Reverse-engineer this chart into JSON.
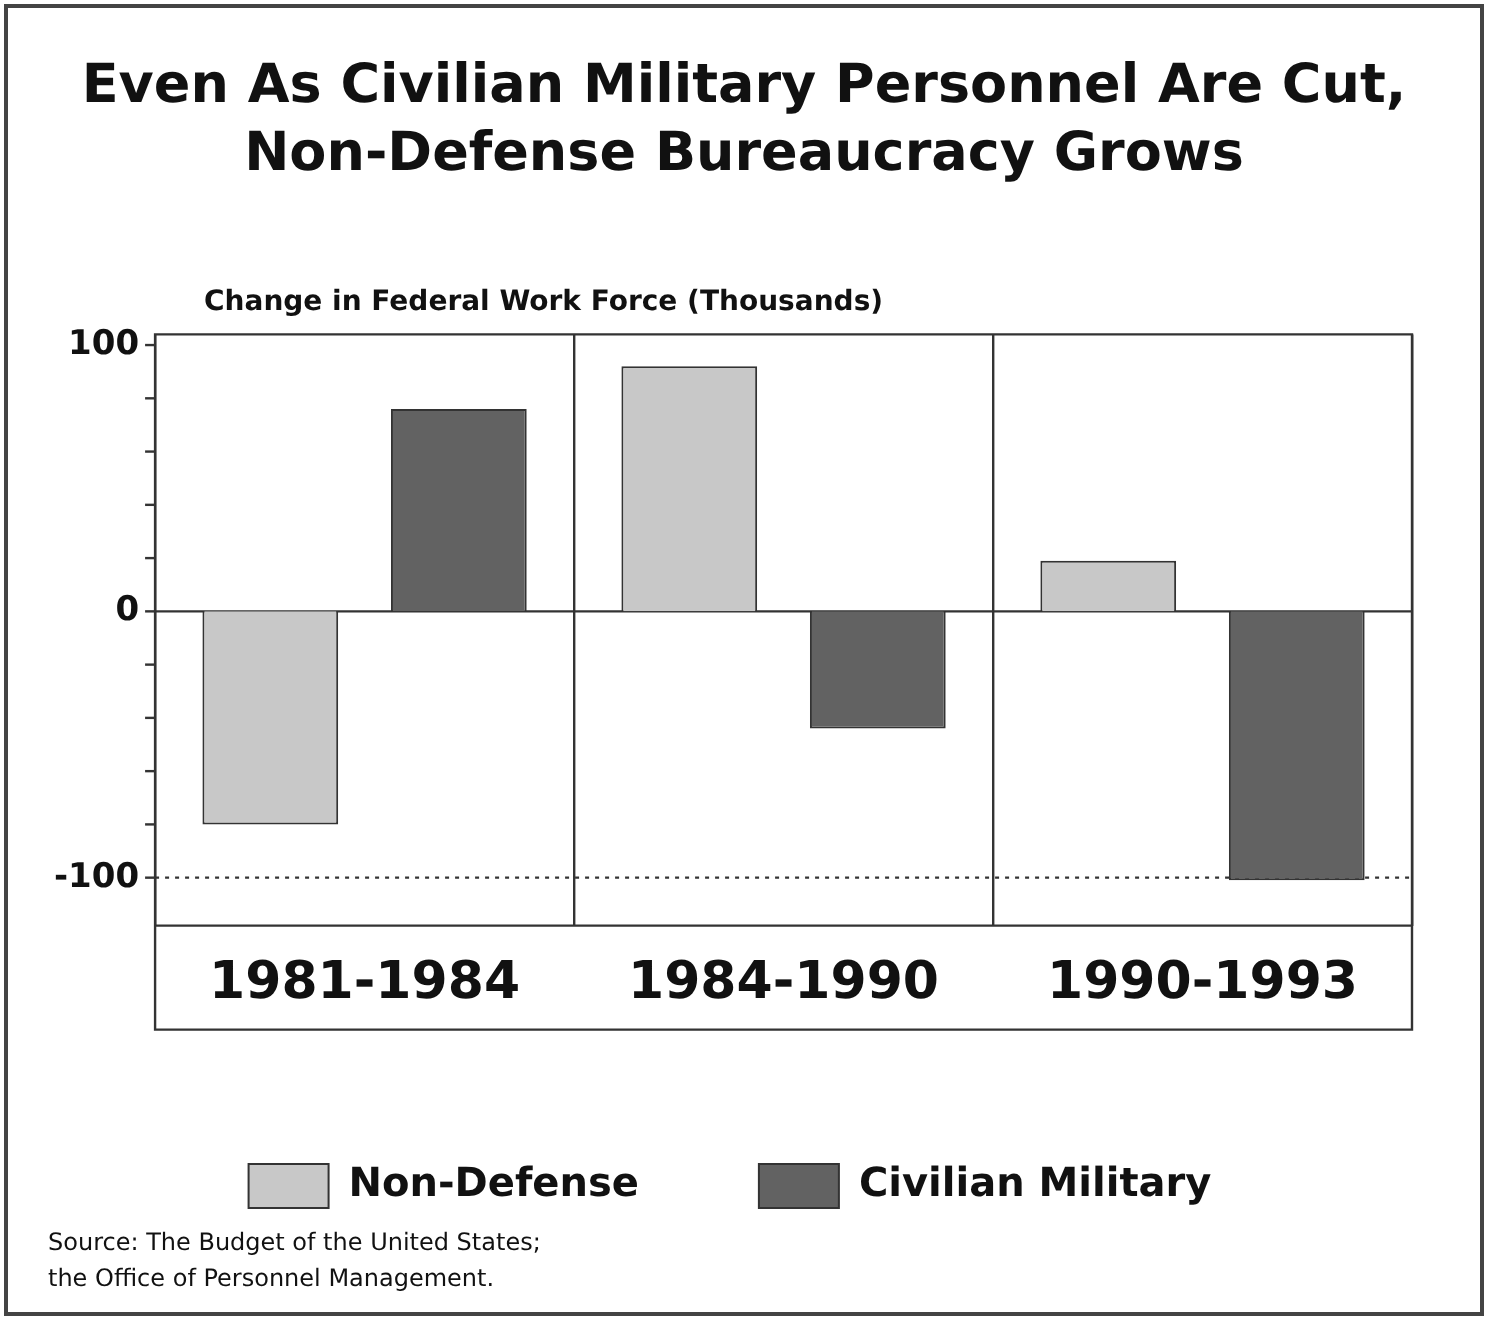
{
  "chart_data": {
    "type": "bar",
    "title": "Even As Civilian Military Personnel Are Cut,\nNon-Defense Bureaucracy Grows",
    "ylabel": "Change in Federal Work Force (Thousands)",
    "categories": [
      "1981-1984",
      "1984-1990",
      "1990-1993"
    ],
    "series": [
      {
        "name": "Non-Defense",
        "color": "#c8c8c8",
        "values": [
          -80,
          92,
          19
        ]
      },
      {
        "name": "Civilian Military",
        "color": "#626262",
        "values": [
          76,
          -44,
          -101
        ]
      }
    ],
    "ylim": [
      -118,
      104
    ],
    "yticks": [
      100,
      {
        "value": 80,
        "label": null
      },
      {
        "value": 60,
        "label": null
      },
      {
        "value": 40,
        "label": null
      },
      {
        "value": 20,
        "label": null
      },
      0,
      {
        "value": -20,
        "label": null
      },
      {
        "value": -40,
        "label": null
      },
      {
        "value": -60,
        "label": null
      },
      {
        "value": -80,
        "label": null
      },
      -100
    ],
    "grid": "x",
    "legend": "bottom",
    "ref_lines": [
      {
        "axis": "y",
        "value": 0,
        "line_style": "solid"
      },
      {
        "axis": "y",
        "value": -100,
        "line_style": "dotted"
      }
    ],
    "annotations": [
      "Source:  The Budget of the United States;\nthe Office of Personnel Management."
    ]
  }
}
